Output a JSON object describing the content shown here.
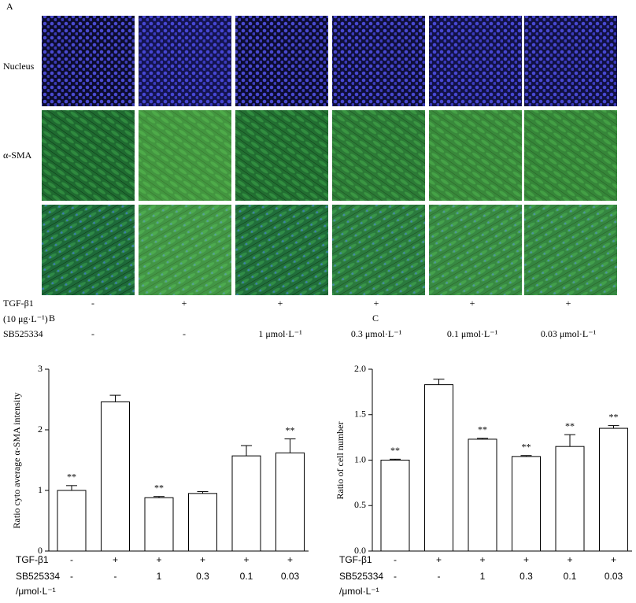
{
  "panel_a": {
    "letter": "A",
    "row_labels": [
      "Nucleus",
      "α-SMA"
    ],
    "tgf_label": "TGF-β1",
    "tgf_unit": "(10 μg·L⁻¹)",
    "tgf": [
      "-",
      "+",
      "+",
      "+",
      "+",
      "+"
    ],
    "sb_label": "SB525334",
    "sb": [
      "-",
      "-",
      "1 μmol·L⁻¹",
      "0.3 μmol·L⁻¹",
      "0.1 μmol·L⁻¹",
      "0.03 μmol·L⁻¹"
    ]
  },
  "chart_data": [
    {
      "type": "bar",
      "letter": "B",
      "ylabel": "Ratio cyto average α-SMA intensity",
      "values": [
        1.0,
        2.46,
        0.88,
        0.95,
        1.57,
        1.62
      ],
      "errors": [
        0.08,
        0.11,
        0.02,
        0.03,
        0.17,
        0.23
      ],
      "annotations": [
        "**",
        null,
        "**",
        null,
        null,
        "**"
      ],
      "ylim": [
        0,
        3
      ],
      "yticks": [
        0,
        1,
        2,
        3
      ],
      "color": "#ffffff",
      "rows": [
        {
          "label": "TGF-β1",
          "values": [
            "-",
            "+",
            "+",
            "+",
            "+",
            "+"
          ]
        },
        {
          "label": "SB525334",
          "sublabel": "/μmol·L⁻¹",
          "values": [
            "-",
            "-",
            "1",
            "0.3",
            "0.1",
            "0.03"
          ]
        }
      ]
    },
    {
      "type": "bar",
      "letter": "C",
      "ylabel": "Ratio of cell number",
      "values": [
        1.0,
        1.83,
        1.23,
        1.04,
        1.15,
        1.35
      ],
      "errors": [
        0.01,
        0.06,
        0.01,
        0.01,
        0.13,
        0.03
      ],
      "annotations": [
        "**",
        null,
        "**",
        "**",
        "**",
        "**"
      ],
      "ylim": [
        0,
        2
      ],
      "yticks": [
        {
          "value": 0,
          "label": "0.0"
        },
        {
          "value": 0.5,
          "label": "0.5"
        },
        {
          "value": 1,
          "label": "1.0"
        },
        {
          "value": 1.5,
          "label": "1.5"
        },
        {
          "value": 2,
          "label": "2.0"
        }
      ],
      "color": "#ffffff",
      "rows": [
        {
          "label": "TGF-β1",
          "values": [
            "-",
            "+",
            "+",
            "+",
            "+",
            "+"
          ]
        },
        {
          "label": "SB525334",
          "sublabel": "/μmol·L⁻¹",
          "values": [
            "-",
            "-",
            "1",
            "0.3",
            "0.1",
            "0.03"
          ]
        }
      ]
    }
  ]
}
